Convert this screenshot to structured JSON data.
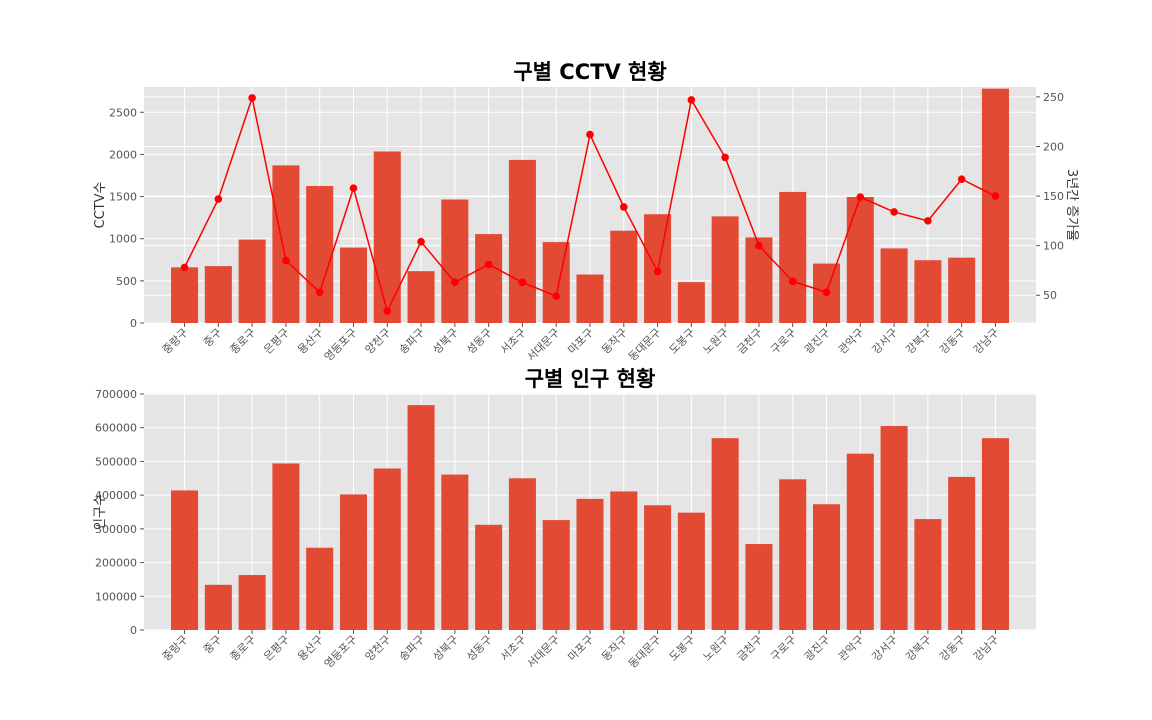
{
  "chart_data": [
    {
      "type": "bar",
      "title": "구별 CCTV 현황",
      "xlabel": "",
      "ylabel": "CCTV수",
      "y2label": "3년간 증가율",
      "ylim": [
        0,
        2800
      ],
      "yticks": [
        0,
        500,
        1000,
        1500,
        2000,
        2500
      ],
      "y2lim": [
        22,
        260
      ],
      "y2ticks": [
        50,
        100,
        150,
        200,
        250
      ],
      "grid": true,
      "categories": [
        "중랑구",
        "중구",
        "종로구",
        "은평구",
        "용산구",
        "영등포구",
        "양천구",
        "송파구",
        "성북구",
        "성동구",
        "서초구",
        "서대문구",
        "마포구",
        "동작구",
        "동대문구",
        "도봉구",
        "노원구",
        "금천구",
        "구로구",
        "광진구",
        "관악구",
        "강서구",
        "강북구",
        "강동구",
        "강남구"
      ],
      "values": [
        660,
        675,
        990,
        1870,
        1625,
        895,
        2035,
        615,
        1465,
        1055,
        1935,
        960,
        575,
        1095,
        1290,
        485,
        1265,
        1015,
        1555,
        705,
        1495,
        885,
        745,
        775,
        2780
      ],
      "line_values": [
        78,
        147,
        249,
        85,
        53,
        158,
        34,
        104,
        63,
        81,
        63,
        49,
        212,
        139,
        74,
        247,
        189,
        100,
        64,
        53,
        149,
        134,
        125,
        167,
        150
      ],
      "colors": {
        "bar": "#E24A33",
        "line": "#FF0000",
        "plot_bg": "#E5E5E5",
        "grid": "#FFFFFF",
        "tick": "#555555",
        "title": "#000000"
      }
    },
    {
      "type": "bar",
      "title": "구별 인구 현황",
      "xlabel": "",
      "ylabel": "인구수",
      "ylim": [
        0,
        700000
      ],
      "yticks": [
        0,
        100000,
        200000,
        300000,
        400000,
        500000,
        600000,
        700000
      ],
      "grid": true,
      "categories": [
        "중랑구",
        "중구",
        "종로구",
        "은평구",
        "용산구",
        "영등포구",
        "양천구",
        "송파구",
        "성북구",
        "성동구",
        "서초구",
        "서대문구",
        "마포구",
        "동작구",
        "동대문구",
        "도봉구",
        "노원구",
        "금천구",
        "구로구",
        "광진구",
        "관악구",
        "강서구",
        "강북구",
        "강동구",
        "강남구"
      ],
      "values": [
        414000,
        134000,
        163000,
        494000,
        244000,
        402000,
        479000,
        667000,
        461000,
        312000,
        450000,
        326000,
        389000,
        411000,
        370000,
        348000,
        569000,
        255000,
        447000,
        373000,
        523000,
        605000,
        329000,
        454000,
        569000
      ],
      "colors": {
        "bar": "#E24A33",
        "plot_bg": "#E5E5E5",
        "grid": "#FFFFFF",
        "tick": "#555555",
        "title": "#000000"
      }
    }
  ]
}
